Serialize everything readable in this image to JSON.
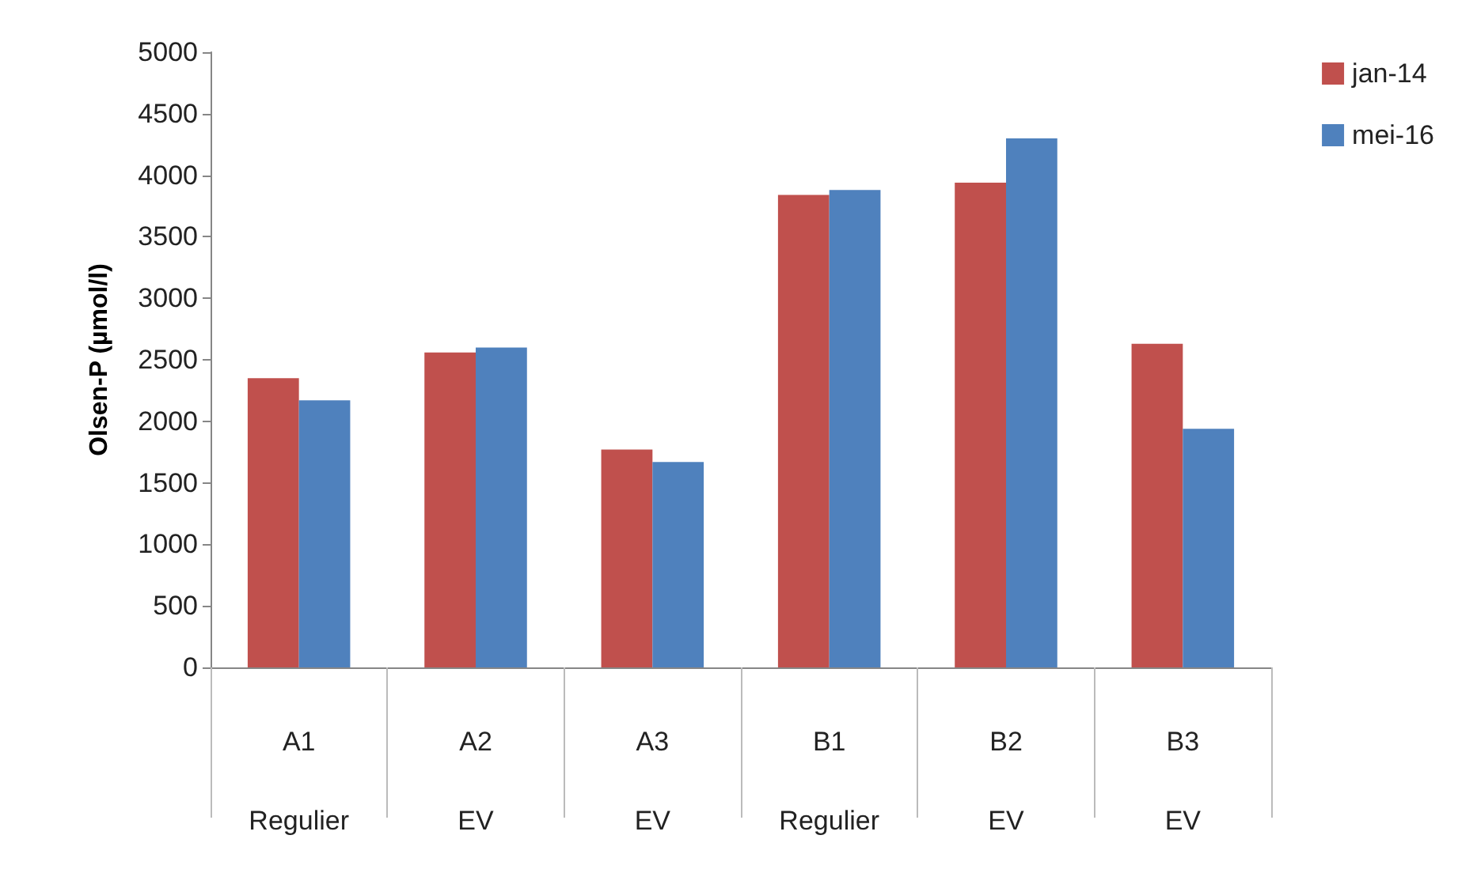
{
  "chart_data": {
    "type": "bar",
    "ylabel": "Olsen-P (µmol/l)",
    "categories": [
      "A1\nRegulier",
      "A2\nEV",
      "A3\nEV",
      "B1\nRegulier",
      "B2\nEV",
      "B3\nEV"
    ],
    "series": [
      {
        "name": "jan-14",
        "color": "#c0504d",
        "values": [
          2350,
          2560,
          1770,
          3840,
          3940,
          2630
        ]
      },
      {
        "name": "mei-16",
        "color": "#4f81bd",
        "values": [
          2170,
          2600,
          1670,
          3880,
          4300,
          1940
        ]
      }
    ],
    "ylim": [
      0,
      5000
    ],
    "yticks": [
      0,
      500,
      1000,
      1500,
      2000,
      2500,
      3000,
      3500,
      4000,
      4500,
      5000
    ],
    "grid": false,
    "legend": "top right"
  }
}
